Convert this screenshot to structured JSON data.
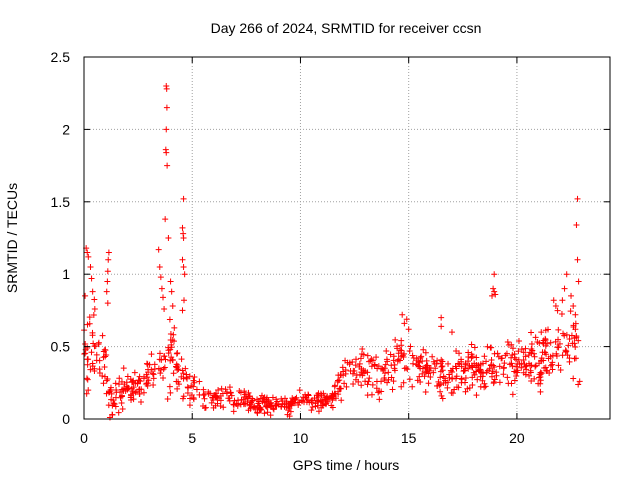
{
  "chart_data": {
    "type": "scatter",
    "title": "Day 266 of 2024, SRMTID for receiver ccsn",
    "xlabel": "GPS time / hours",
    "ylabel": "SRMTID / TECUs",
    "xlim": [
      0,
      24.3
    ],
    "ylim": [
      0,
      2.5
    ],
    "x_ticks": [
      0,
      5,
      10,
      15,
      20
    ],
    "y_ticks": [
      0,
      0.5,
      1,
      1.5,
      2,
      2.5
    ],
    "grid": true,
    "marker": "+",
    "colors": {
      "series": "#ff0000",
      "axis": "#000000",
      "grid": "#a0a0a0"
    },
    "envelope_hours": [
      0,
      0.5,
      1,
      1.25,
      1.5,
      2,
      2.5,
      3,
      3.5,
      4,
      4.5,
      5,
      5.5,
      6,
      7,
      8,
      9,
      9.5,
      10,
      11,
      11.5,
      12,
      13,
      14,
      14.5,
      15,
      15.5,
      16,
      16.5,
      17,
      17.5,
      18,
      18.5,
      19,
      19.5,
      20,
      20.5,
      21,
      21.5,
      22,
      22.5,
      22.9
    ],
    "envelope_median": [
      0.45,
      0.5,
      0.35,
      0.12,
      0.15,
      0.2,
      0.2,
      0.3,
      0.3,
      0.45,
      0.3,
      0.2,
      0.18,
      0.15,
      0.15,
      0.1,
      0.1,
      0.1,
      0.15,
      0.12,
      0.15,
      0.3,
      0.35,
      0.3,
      0.4,
      0.4,
      0.35,
      0.35,
      0.3,
      0.3,
      0.35,
      0.35,
      0.35,
      0.38,
      0.4,
      0.4,
      0.4,
      0.4,
      0.45,
      0.5,
      0.55,
      0.4
    ],
    "envelope_spread": [
      0.25,
      0.25,
      0.2,
      0.08,
      0.1,
      0.1,
      0.1,
      0.12,
      0.15,
      0.25,
      0.15,
      0.1,
      0.1,
      0.07,
      0.07,
      0.05,
      0.05,
      0.05,
      0.05,
      0.05,
      0.05,
      0.1,
      0.12,
      0.12,
      0.18,
      0.18,
      0.12,
      0.12,
      0.12,
      0.12,
      0.12,
      0.12,
      0.14,
      0.14,
      0.14,
      0.14,
      0.14,
      0.16,
      0.16,
      0.18,
      0.18,
      0.15
    ],
    "envelope_density": 900,
    "spikes": [
      {
        "x": 0.1,
        "y": 1.18
      },
      {
        "x": 0.15,
        "y": 1.15
      },
      {
        "x": 0.2,
        "y": 1.12
      },
      {
        "x": 0.3,
        "y": 1.05
      },
      {
        "x": 0.35,
        "y": 0.97
      },
      {
        "x": 0.4,
        "y": 0.88
      },
      {
        "x": 0.05,
        "y": 0.85
      },
      {
        "x": 0.5,
        "y": 0.76
      },
      {
        "x": 1.15,
        "y": 1.15
      },
      {
        "x": 1.12,
        "y": 1.1
      },
      {
        "x": 1.1,
        "y": 1.02
      },
      {
        "x": 1.08,
        "y": 0.95
      },
      {
        "x": 1.05,
        "y": 0.88
      },
      {
        "x": 1.1,
        "y": 0.8
      },
      {
        "x": 3.45,
        "y": 1.17
      },
      {
        "x": 3.5,
        "y": 1.05
      },
      {
        "x": 3.55,
        "y": 0.98
      },
      {
        "x": 3.6,
        "y": 0.9
      },
      {
        "x": 3.65,
        "y": 0.84
      },
      {
        "x": 3.7,
        "y": 0.76
      },
      {
        "x": 3.8,
        "y": 2.3
      },
      {
        "x": 3.82,
        "y": 2.28
      },
      {
        "x": 3.83,
        "y": 2.15
      },
      {
        "x": 3.8,
        "y": 2.0
      },
      {
        "x": 3.78,
        "y": 1.86
      },
      {
        "x": 3.8,
        "y": 1.84
      },
      {
        "x": 3.84,
        "y": 1.75
      },
      {
        "x": 3.75,
        "y": 1.38
      },
      {
        "x": 3.9,
        "y": 1.25
      },
      {
        "x": 4.0,
        "y": 0.95
      },
      {
        "x": 4.05,
        "y": 0.88
      },
      {
        "x": 4.1,
        "y": 0.78
      },
      {
        "x": 4.6,
        "y": 1.52
      },
      {
        "x": 4.55,
        "y": 1.32
      },
      {
        "x": 4.58,
        "y": 1.28
      },
      {
        "x": 4.6,
        "y": 1.25
      },
      {
        "x": 4.55,
        "y": 1.1
      },
      {
        "x": 4.6,
        "y": 1.05
      },
      {
        "x": 4.65,
        "y": 1.0
      },
      {
        "x": 4.62,
        "y": 0.82
      },
      {
        "x": 4.55,
        "y": 0.75
      },
      {
        "x": 14.7,
        "y": 0.72
      },
      {
        "x": 14.8,
        "y": 0.66
      },
      {
        "x": 15.0,
        "y": 0.62
      },
      {
        "x": 17.0,
        "y": 0.6
      },
      {
        "x": 16.5,
        "y": 0.7
      },
      {
        "x": 16.5,
        "y": 0.64
      },
      {
        "x": 18.95,
        "y": 1.0
      },
      {
        "x": 18.9,
        "y": 0.9
      },
      {
        "x": 18.95,
        "y": 0.88
      },
      {
        "x": 19.0,
        "y": 0.86
      },
      {
        "x": 18.85,
        "y": 0.85
      },
      {
        "x": 21.7,
        "y": 0.82
      },
      {
        "x": 21.8,
        "y": 0.78
      },
      {
        "x": 22.2,
        "y": 0.9
      },
      {
        "x": 22.1,
        "y": 0.82
      },
      {
        "x": 22.3,
        "y": 1.0
      },
      {
        "x": 22.5,
        "y": 0.85
      },
      {
        "x": 22.6,
        "y": 0.78
      },
      {
        "x": 22.8,
        "y": 1.52
      },
      {
        "x": 22.75,
        "y": 1.34
      },
      {
        "x": 22.8,
        "y": 1.1
      },
      {
        "x": 22.85,
        "y": 0.95
      },
      {
        "x": 22.7,
        "y": 0.72
      },
      {
        "x": 22.7,
        "y": 0.62
      },
      {
        "x": 22.6,
        "y": 0.28
      },
      {
        "x": 22.9,
        "y": 0.26
      },
      {
        "x": 9.5,
        "y": 0.02
      },
      {
        "x": 9.4,
        "y": 0.03
      },
      {
        "x": 1.2,
        "y": 0.01
      },
      {
        "x": 1.3,
        "y": 0.03
      }
    ]
  }
}
